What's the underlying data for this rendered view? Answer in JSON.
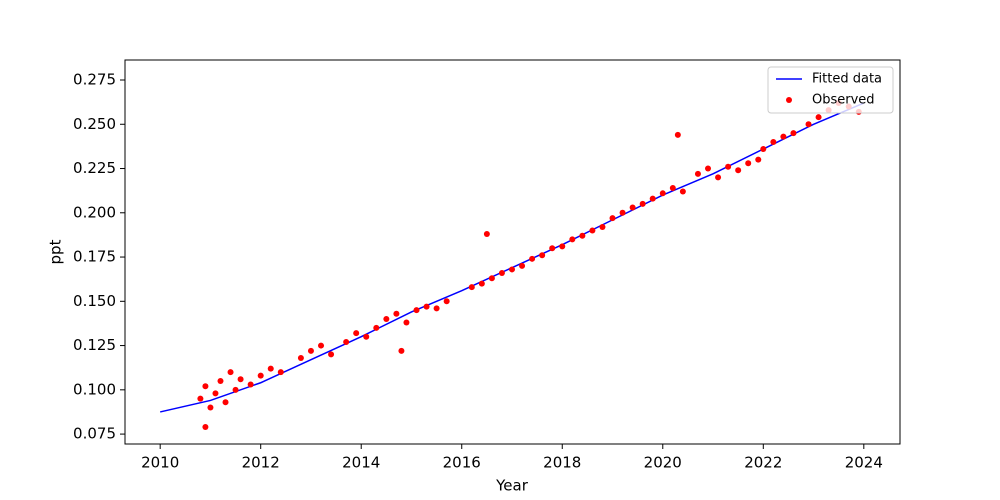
{
  "chart_data": {
    "type": "line+scatter",
    "xlabel": "Year",
    "ylabel": "ppt",
    "xlim": [
      2009.3,
      2024.72
    ],
    "xticks": [
      2010,
      2012,
      2014,
      2016,
      2018,
      2020,
      2022,
      2024
    ],
    "ylim": [
      0.0694,
      0.2863
    ],
    "yticks": [
      0.075,
      {
        "value": 0.1,
        "label": "0.100"
      },
      0.125,
      {
        "value": 0.15,
        "label": "0.150"
      },
      0.175,
      {
        "value": 0.2,
        "label": "0.200"
      },
      0.225,
      {
        "value": 0.25,
        "label": "0.250"
      },
      0.275
    ],
    "legend": "upper right",
    "series": [
      {
        "name": "Fitted data",
        "type": "line",
        "color": "#0000ff",
        "x": [
          2010,
          2011,
          2012,
          2013,
          2014,
          2015,
          2016,
          2017,
          2018,
          2019,
          2020,
          2021,
          2022,
          2023,
          2024
        ],
        "values": [
          0.0875,
          0.094,
          0.104,
          0.117,
          0.13,
          0.144,
          0.156,
          0.169,
          0.182,
          0.196,
          0.21,
          0.222,
          0.236,
          0.25,
          0.262
        ]
      },
      {
        "name": "Observed",
        "type": "scatter",
        "color": "#ff0000",
        "x": [
          2010.8,
          2010.9,
          2011.0,
          2011.1,
          2011.2,
          2011.3,
          2011.4,
          2011.5,
          2011.6,
          2011.8,
          2012.0,
          2012.2,
          2012.4,
          2012.8,
          2013.0,
          2013.2,
          2013.4,
          2013.7,
          2013.9,
          2014.1,
          2014.3,
          2014.5,
          2014.7,
          2014.9,
          2015.1,
          2015.3,
          2015.5,
          2015.7,
          2016.2,
          2016.4,
          2016.6,
          2016.8,
          2017.0,
          2017.2,
          2017.4,
          2017.6,
          2017.8,
          2018.0,
          2018.2,
          2018.4,
          2018.6,
          2018.8,
          2019.0,
          2019.2,
          2019.4,
          2019.6,
          2019.8,
          2020.0,
          2020.2,
          2020.4,
          2020.7,
          2020.9,
          2021.1,
          2021.3,
          2021.5,
          2021.7,
          2021.9,
          2022.0,
          2022.2,
          2022.4,
          2022.6,
          2022.9,
          2023.1,
          2023.3,
          2023.5,
          2023.7,
          2023.9,
          2010.9,
          2020.3,
          2016.5,
          2014.8
        ],
        "values": [
          0.095,
          0.102,
          0.09,
          0.098,
          0.105,
          0.093,
          0.11,
          0.1,
          0.106,
          0.103,
          0.108,
          0.112,
          0.11,
          0.118,
          0.122,
          0.125,
          0.12,
          0.127,
          0.132,
          0.13,
          0.135,
          0.14,
          0.143,
          0.138,
          0.145,
          0.147,
          0.146,
          0.15,
          0.158,
          0.16,
          0.163,
          0.166,
          0.168,
          0.17,
          0.174,
          0.176,
          0.18,
          0.181,
          0.185,
          0.187,
          0.19,
          0.192,
          0.197,
          0.2,
          0.203,
          0.205,
          0.208,
          0.211,
          0.214,
          0.212,
          0.222,
          0.225,
          0.22,
          0.226,
          0.224,
          0.228,
          0.23,
          0.236,
          0.24,
          0.243,
          0.245,
          0.25,
          0.254,
          0.258,
          0.262,
          0.26,
          0.257,
          0.079,
          0.244,
          0.188,
          0.122
        ]
      }
    ]
  }
}
